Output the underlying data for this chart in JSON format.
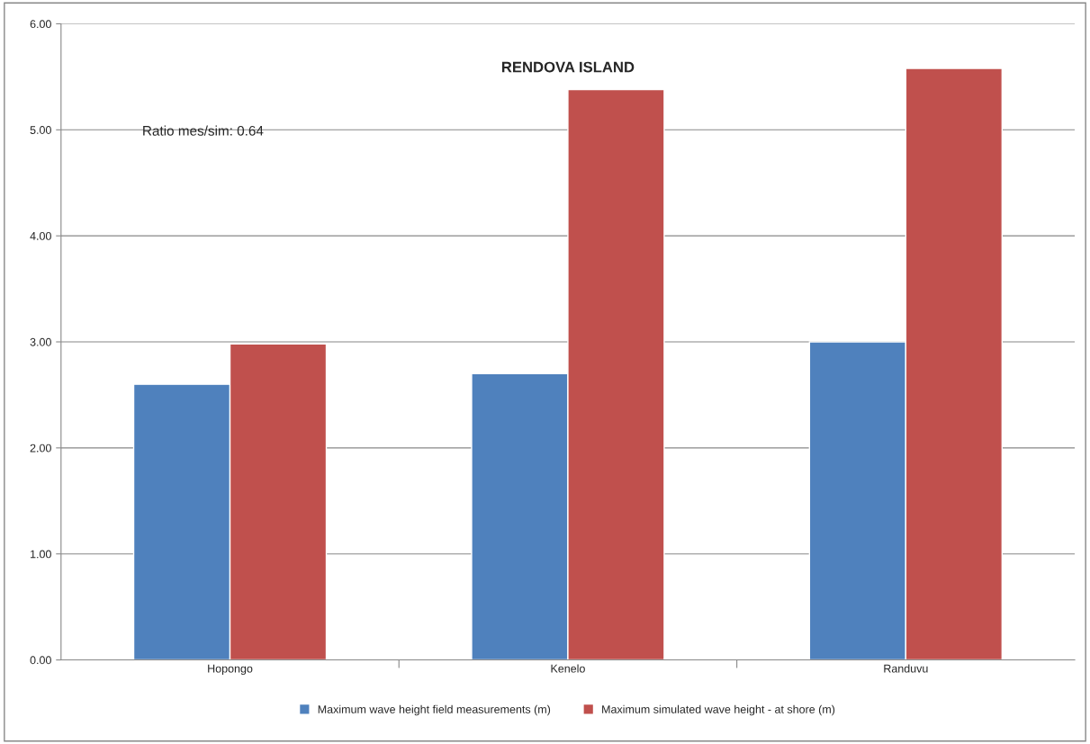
{
  "chart_data": {
    "type": "bar",
    "title": "RENDOVA ISLAND",
    "categories": [
      "Hopongo",
      "Kenelo",
      "Randuvu"
    ],
    "series": [
      {
        "name": "Maximum wave height field measurements (m)",
        "color": "#4f81bd",
        "values": [
          2.6,
          2.7,
          3.0
        ]
      },
      {
        "name": "Maximum simulated wave height - at shore (m)",
        "color": "#c0504d",
        "values": [
          2.98,
          5.38,
          5.58
        ]
      }
    ],
    "ylim": [
      0,
      6
    ],
    "yticks": [
      {
        "value": 0,
        "label": "0.00"
      },
      {
        "value": 1,
        "label": "1.00"
      },
      {
        "value": 2,
        "label": "2.00"
      },
      {
        "value": 3,
        "label": "3.00"
      },
      {
        "value": 4,
        "label": "4.00"
      },
      {
        "value": 5,
        "label": "5.00"
      },
      {
        "value": 6,
        "label": "6.00"
      }
    ],
    "annotations": [
      "Ratio mes/sim: 0.64"
    ],
    "grid": "y",
    "legend": "bottom"
  }
}
